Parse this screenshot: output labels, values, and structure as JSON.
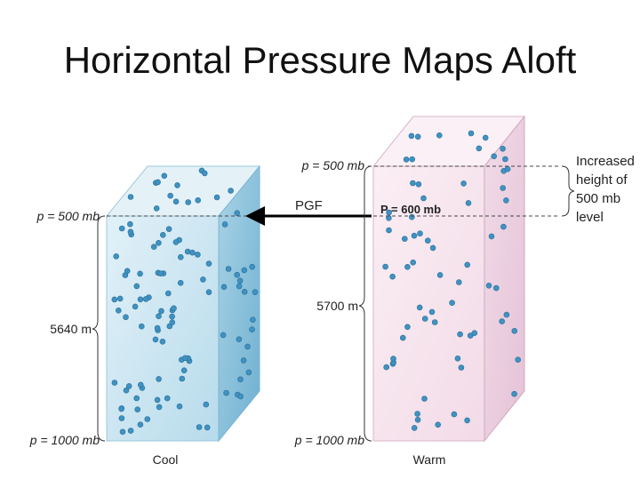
{
  "title": "Horizontal Pressure Maps Aloft",
  "cool_column": {
    "top_pressure": "p = 500 mb",
    "height": "5640 m",
    "bottom_pressure": "p = 1000 mb",
    "caption": "Cool"
  },
  "warm_column": {
    "top_pressure": "p = 500 mb",
    "height": "5700 m",
    "bottom_pressure": "p = 1000 mb",
    "caption": "Warm",
    "inner_pressure": "P = 600 mb"
  },
  "pgf_label": "PGF",
  "annotation": {
    "line1": "Increased",
    "line2": "height of",
    "line3": "500 mb",
    "line4": "level"
  },
  "colors": {
    "cool_front": "#cfe7f2",
    "cool_side": "#8cc3dc",
    "cool_top": "#e6f3f9",
    "warm_front": "#f6e4ee",
    "warm_side": "#eccfe0",
    "warm_top": "#fbf0f5",
    "dot": "#3f92c2"
  }
}
